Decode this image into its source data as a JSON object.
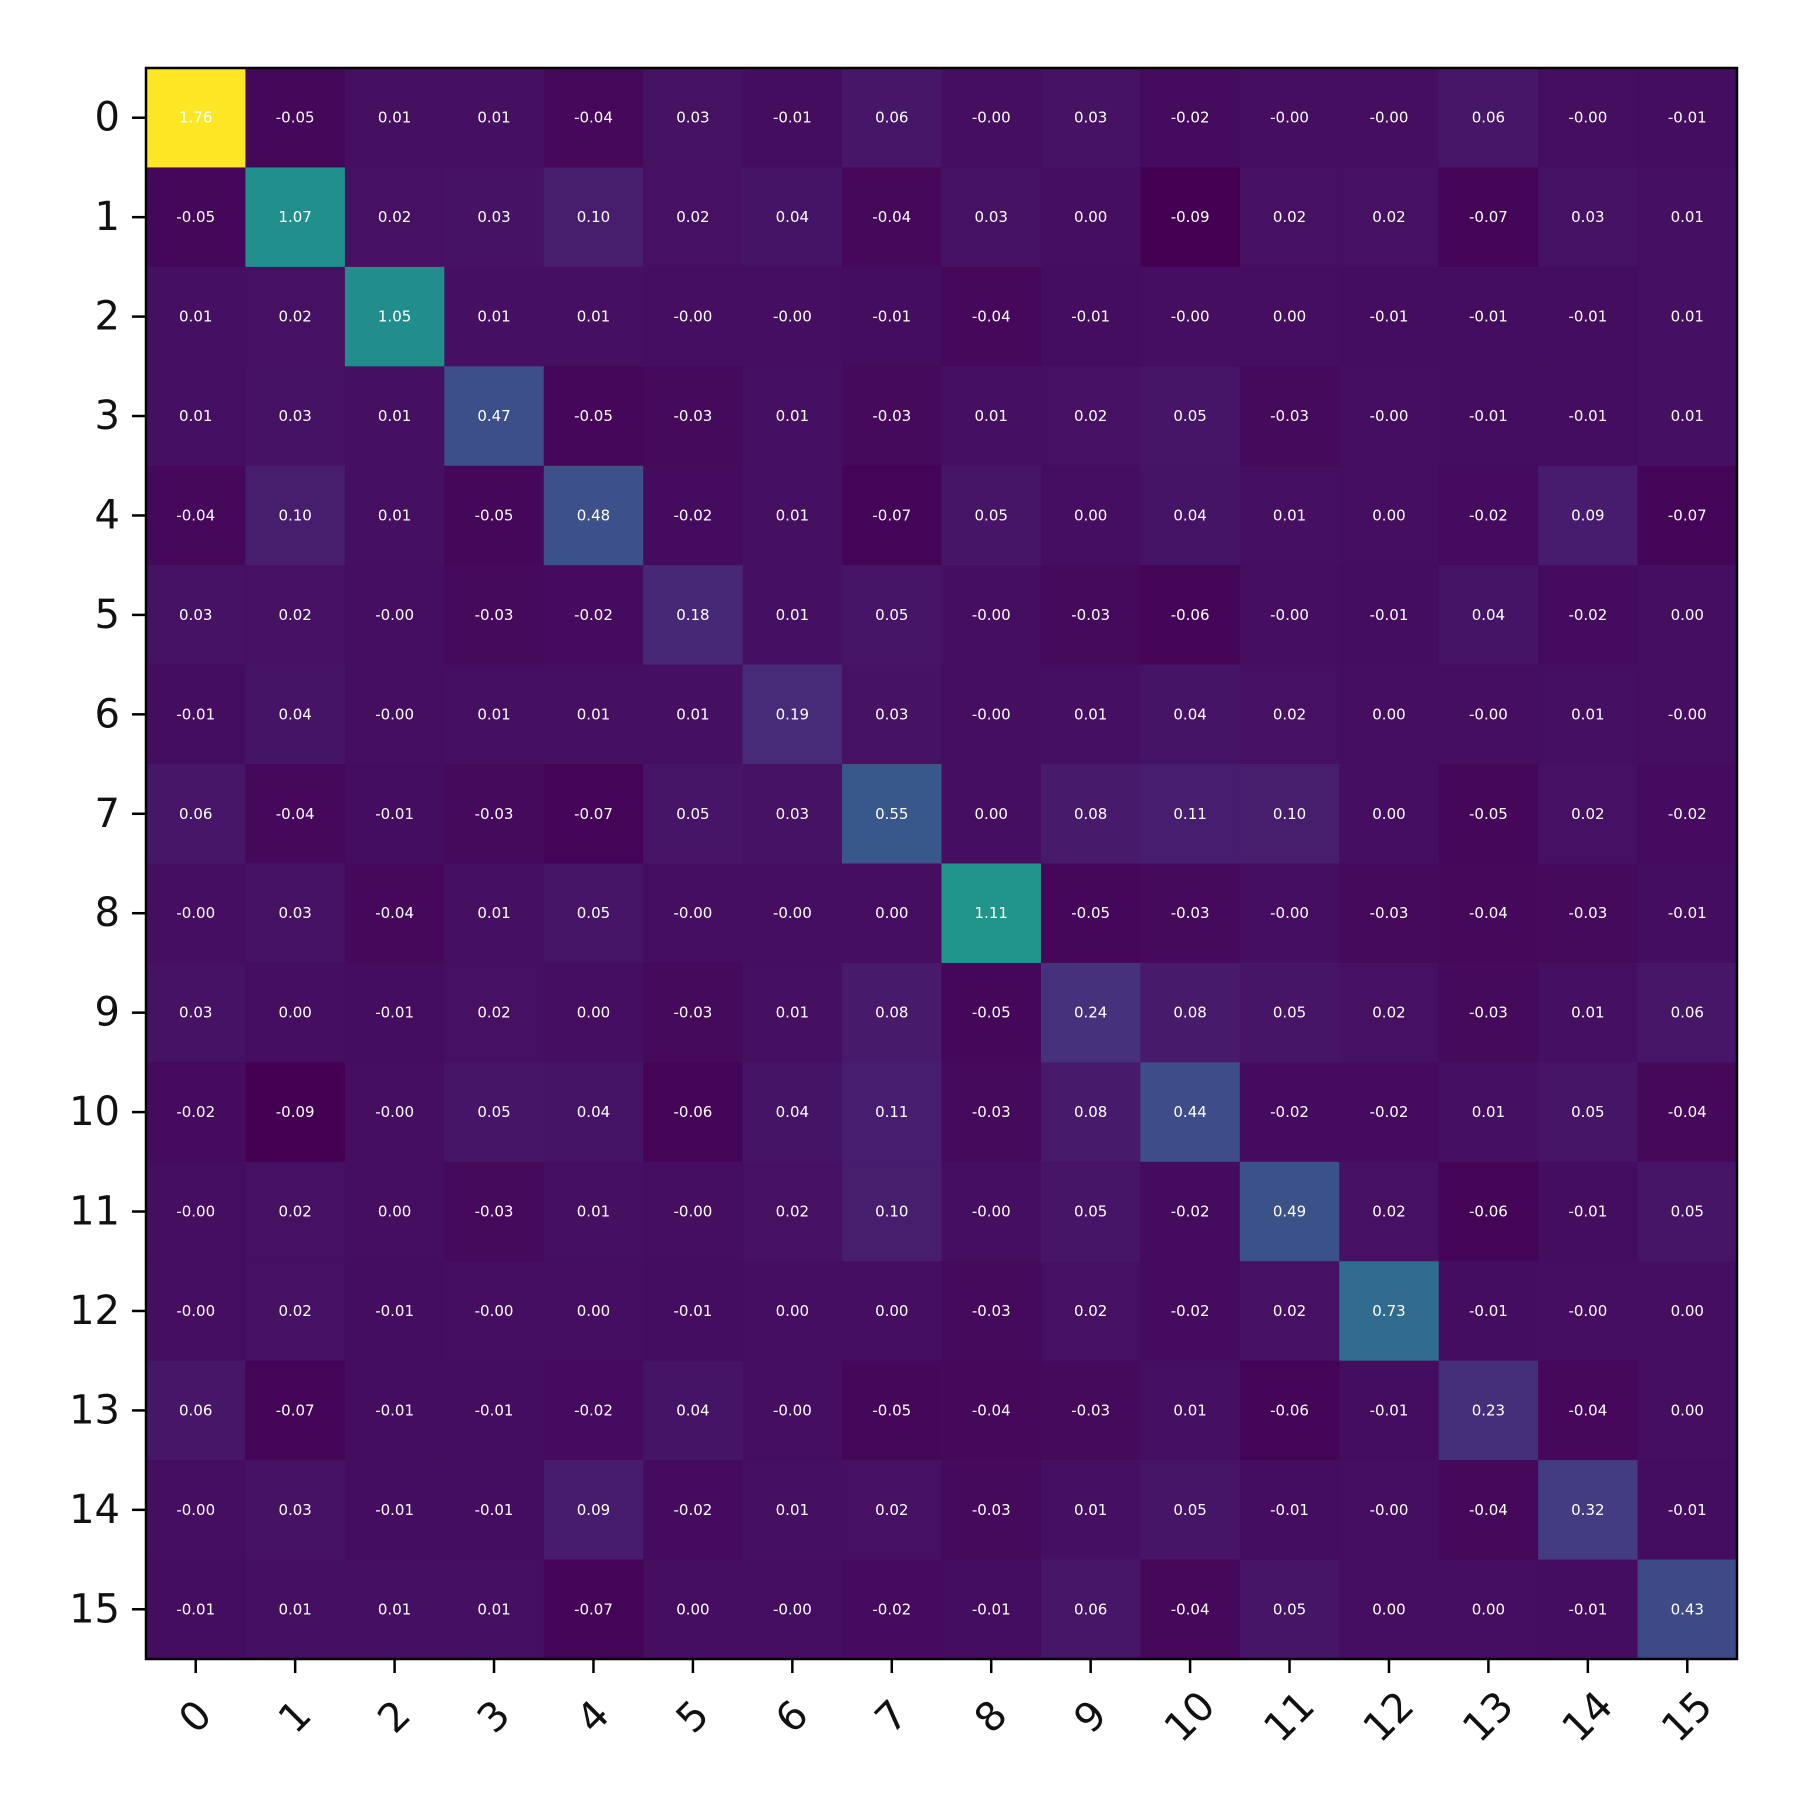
{
  "chart_data": {
    "type": "heatmap",
    "title": "",
    "xlabel": "",
    "ylabel": "",
    "colormap": "viridis",
    "vmin": -0.09,
    "vmax": 1.76,
    "grid": false,
    "legend": "none",
    "x_ticks": [
      "0",
      "1",
      "2",
      "3",
      "4",
      "5",
      "6",
      "7",
      "8",
      "9",
      "10",
      "11",
      "12",
      "13",
      "14",
      "15"
    ],
    "y_ticks": [
      "0",
      "1",
      "2",
      "3",
      "4",
      "5",
      "6",
      "7",
      "8",
      "9",
      "10",
      "11",
      "12",
      "13",
      "14",
      "15"
    ],
    "values": [
      [
        "1.76",
        "-0.05",
        "0.01",
        "0.01",
        "-0.04",
        "0.03",
        "-0.01",
        "0.06",
        "-0.00",
        "0.03",
        "-0.02",
        "-0.00",
        "-0.00",
        "0.06",
        "-0.00",
        "-0.01"
      ],
      [
        "-0.05",
        "1.07",
        "0.02",
        "0.03",
        "0.10",
        "0.02",
        "0.04",
        "-0.04",
        "0.03",
        "0.00",
        "-0.09",
        "0.02",
        "0.02",
        "-0.07",
        "0.03",
        "0.01"
      ],
      [
        "0.01",
        "0.02",
        "1.05",
        "0.01",
        "0.01",
        "-0.00",
        "-0.00",
        "-0.01",
        "-0.04",
        "-0.01",
        "-0.00",
        "0.00",
        "-0.01",
        "-0.01",
        "-0.01",
        "0.01"
      ],
      [
        "0.01",
        "0.03",
        "0.01",
        "0.47",
        "-0.05",
        "-0.03",
        "0.01",
        "-0.03",
        "0.01",
        "0.02",
        "0.05",
        "-0.03",
        "-0.00",
        "-0.01",
        "-0.01",
        "0.01"
      ],
      [
        "-0.04",
        "0.10",
        "0.01",
        "-0.05",
        "0.48",
        "-0.02",
        "0.01",
        "-0.07",
        "0.05",
        "0.00",
        "0.04",
        "0.01",
        "0.00",
        "-0.02",
        "0.09",
        "-0.07"
      ],
      [
        "0.03",
        "0.02",
        "-0.00",
        "-0.03",
        "-0.02",
        "0.18",
        "0.01",
        "0.05",
        "-0.00",
        "-0.03",
        "-0.06",
        "-0.00",
        "-0.01",
        "0.04",
        "-0.02",
        "0.00"
      ],
      [
        "-0.01",
        "0.04",
        "-0.00",
        "0.01",
        "0.01",
        "0.01",
        "0.19",
        "0.03",
        "-0.00",
        "0.01",
        "0.04",
        "0.02",
        "0.00",
        "-0.00",
        "0.01",
        "-0.00"
      ],
      [
        "0.06",
        "-0.04",
        "-0.01",
        "-0.03",
        "-0.07",
        "0.05",
        "0.03",
        "0.55",
        "0.00",
        "0.08",
        "0.11",
        "0.10",
        "0.00",
        "-0.05",
        "0.02",
        "-0.02"
      ],
      [
        "-0.00",
        "0.03",
        "-0.04",
        "0.01",
        "0.05",
        "-0.00",
        "-0.00",
        "0.00",
        "1.11",
        "-0.05",
        "-0.03",
        "-0.00",
        "-0.03",
        "-0.04",
        "-0.03",
        "-0.01"
      ],
      [
        "0.03",
        "0.00",
        "-0.01",
        "0.02",
        "0.00",
        "-0.03",
        "0.01",
        "0.08",
        "-0.05",
        "0.24",
        "0.08",
        "0.05",
        "0.02",
        "-0.03",
        "0.01",
        "0.06"
      ],
      [
        "-0.02",
        "-0.09",
        "-0.00",
        "0.05",
        "0.04",
        "-0.06",
        "0.04",
        "0.11",
        "-0.03",
        "0.08",
        "0.44",
        "-0.02",
        "-0.02",
        "0.01",
        "0.05",
        "-0.04"
      ],
      [
        "-0.00",
        "0.02",
        "0.00",
        "-0.03",
        "0.01",
        "-0.00",
        "0.02",
        "0.10",
        "-0.00",
        "0.05",
        "-0.02",
        "0.49",
        "0.02",
        "-0.06",
        "-0.01",
        "0.05"
      ],
      [
        "-0.00",
        "0.02",
        "-0.01",
        "-0.00",
        "0.00",
        "-0.01",
        "0.00",
        "0.00",
        "-0.03",
        "0.02",
        "-0.02",
        "0.02",
        "0.73",
        "-0.01",
        "-0.00",
        "0.00"
      ],
      [
        "0.06",
        "-0.07",
        "-0.01",
        "-0.01",
        "-0.02",
        "0.04",
        "-0.00",
        "-0.05",
        "-0.04",
        "-0.03",
        "0.01",
        "-0.06",
        "-0.01",
        "0.23",
        "-0.04",
        "0.00"
      ],
      [
        "-0.00",
        "0.03",
        "-0.01",
        "-0.01",
        "0.09",
        "-0.02",
        "0.01",
        "0.02",
        "-0.03",
        "0.01",
        "0.05",
        "-0.01",
        "-0.00",
        "-0.04",
        "0.32",
        "-0.01"
      ],
      [
        "-0.01",
        "0.01",
        "0.01",
        "0.01",
        "-0.07",
        "0.00",
        "-0.00",
        "-0.02",
        "-0.01",
        "0.06",
        "-0.04",
        "0.05",
        "0.00",
        "0.00",
        "-0.01",
        "0.43"
      ]
    ]
  }
}
